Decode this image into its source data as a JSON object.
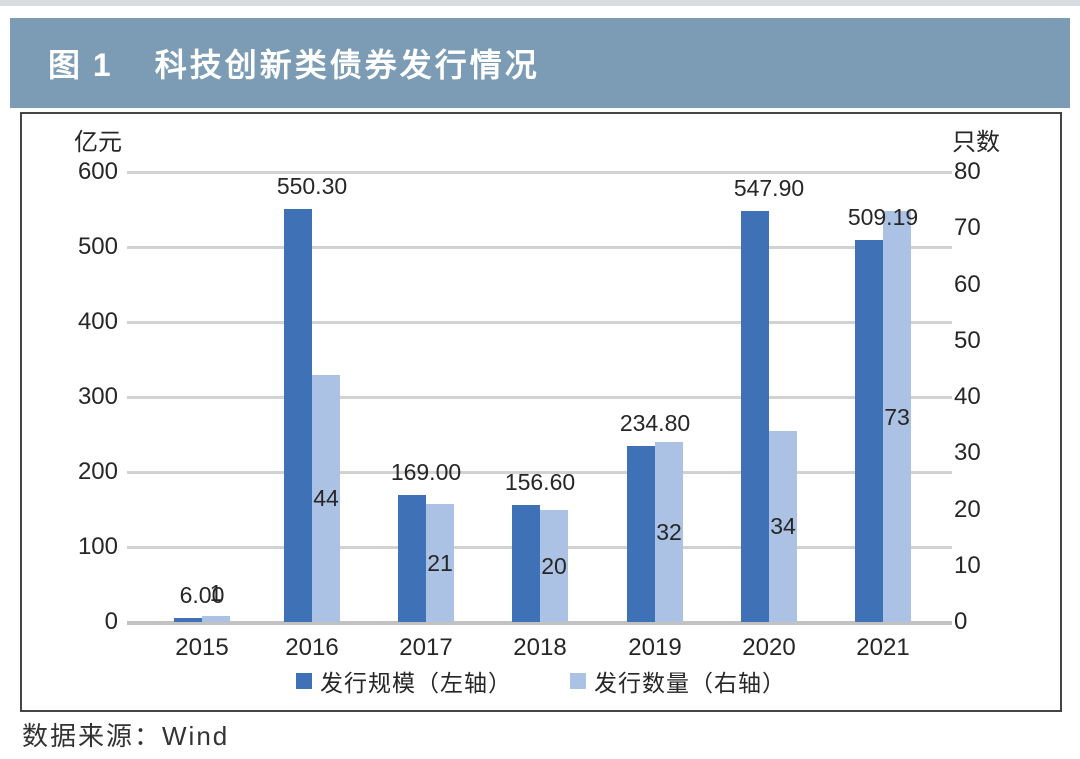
{
  "figure": {
    "label": "图 1",
    "title": "科技创新类债券发行情况"
  },
  "source": "数据来源：Wind",
  "colors": {
    "banner_bg": "#7b9cb4",
    "scale_bar": "#3e71b6",
    "count_bar": "#acc2e5",
    "gridline": "#d2d2d2",
    "text": "#262626"
  },
  "chart_data": {
    "type": "bar",
    "title": "科技创新类债券发行情况",
    "categories": [
      "2015",
      "2016",
      "2017",
      "2018",
      "2019",
      "2020",
      "2021"
    ],
    "series": [
      {
        "name": "发行规模（左轴）",
        "axis": "left",
        "color": "#3e71b6",
        "values": [
          6.0,
          550.3,
          169.0,
          156.6,
          234.8,
          547.9,
          509.19
        ],
        "labels": [
          "6.00",
          "550.30",
          "169.00",
          "156.60",
          "234.80",
          "547.90",
          "509.19"
        ]
      },
      {
        "name": "发行数量（右轴）",
        "axis": "right",
        "color": "#acc2e5",
        "values": [
          1,
          44,
          21,
          20,
          32,
          34,
          73
        ],
        "labels": [
          "1",
          "44",
          "21",
          "20",
          "32",
          "34",
          "73"
        ]
      }
    ],
    "left_axis": {
      "label": "亿元",
      "min": 0,
      "max": 600,
      "step": 100
    },
    "right_axis": {
      "label": "只数",
      "min": 0,
      "max": 80,
      "step": 10
    },
    "grid": true,
    "legend_position": "bottom"
  }
}
